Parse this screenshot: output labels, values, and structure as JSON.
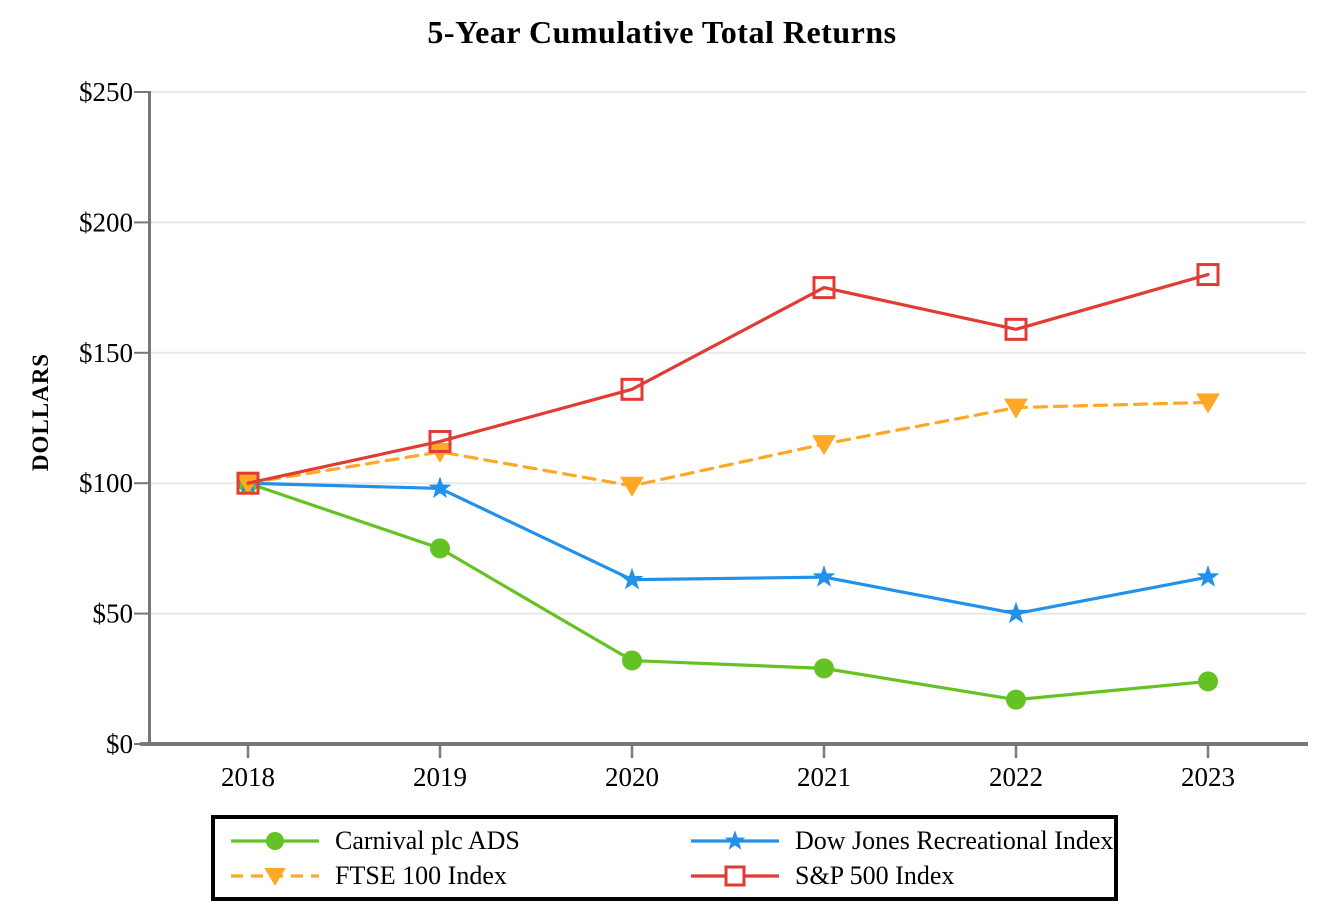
{
  "chart_data": {
    "type": "line",
    "title": "5-Year Cumulative Total Returns",
    "xlabel": "",
    "ylabel": "DOLLARS",
    "categories": [
      "2018",
      "2019",
      "2020",
      "2021",
      "2022",
      "2023"
    ],
    "ylim": [
      0,
      250
    ],
    "y_tick_step": 50,
    "y_tick_labels": [
      "$0",
      "$50",
      "$100",
      "$150",
      "$200",
      "$250"
    ],
    "grid": "horizontal-light-gray",
    "legend_position": "bottom-boxed-two-columns",
    "series": [
      {
        "name": "Carnival plc ADS",
        "marker": "circle-filled",
        "line": "solid",
        "color": "#64C323",
        "values": [
          100,
          75,
          32,
          29,
          17,
          24
        ]
      },
      {
        "name": "Dow Jones Recreational Index",
        "marker": "star-filled",
        "line": "solid",
        "color": "#2191E9",
        "values": [
          100,
          98,
          63,
          64,
          50,
          64
        ]
      },
      {
        "name": "FTSE 100 Index",
        "marker": "triangle-down-filled",
        "line": "dashed",
        "color": "#FFA826",
        "values": [
          100,
          112,
          99,
          115,
          129,
          131
        ]
      },
      {
        "name": "S&P 500 Index",
        "marker": "square-open",
        "line": "solid",
        "color": "#E23B33",
        "values": [
          100,
          116,
          136,
          175,
          159,
          180
        ]
      }
    ]
  },
  "colors": {
    "axis": "#787878",
    "grid": "#E8E8E8",
    "text": "#000000",
    "background": "#FFFFFF",
    "legend_border": "#000000"
  }
}
